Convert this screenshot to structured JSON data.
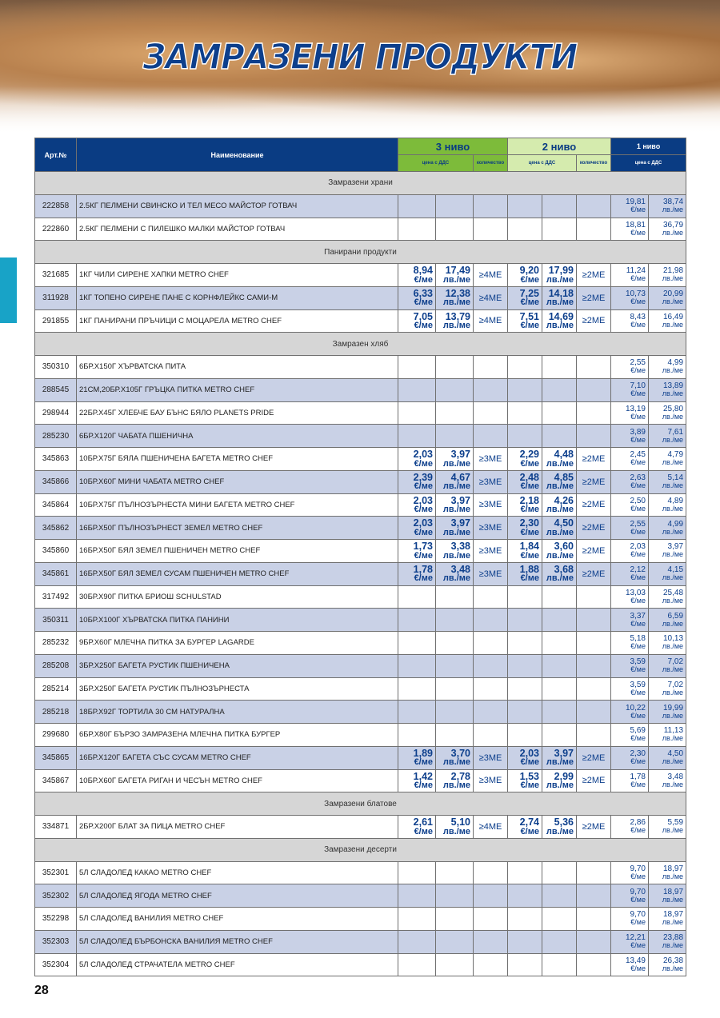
{
  "title": "ЗАМРАЗЕНИ ПРОДУКТИ",
  "page_number": "28",
  "colors": {
    "header_blue": "#0a3c83",
    "level3_green": "#7dbb3a",
    "level2_green": "#d5ebae",
    "row_shade": "#c9d1e6",
    "section_gray": "#d6d6d6",
    "side_tab": "#18a3c7"
  },
  "header": {
    "art": "Арт.№",
    "name": "Наименование",
    "level3": "3 ниво",
    "level2": "2 ниво",
    "level1": "1 ниво",
    "price_vat": "цена с ДДС",
    "quantity": "количество"
  },
  "units": {
    "eur": "€/ме",
    "bgn": "лв./ме"
  },
  "sections": [
    {
      "title": "Замразени храни",
      "items": [
        {
          "art": "222858",
          "name": "2.5КГ ПЕЛМЕНИ СВИНСКО И ТЕЛ МЕСО МАЙСТОР ГОТВАЧ",
          "l1": [
            "19,81",
            "38,74"
          ]
        },
        {
          "art": "222860",
          "name": "2.5КГ ПЕЛМЕНИ С ПИЛЕШКО МАЛКИ МАЙСТОР ГОТВАЧ",
          "l1": [
            "18,81",
            "36,79"
          ]
        }
      ]
    },
    {
      "title": "Панирани продукти",
      "items": [
        {
          "art": "321685",
          "name": "1КГ ЧИЛИ СИРЕНЕ ХАПКИ METRO CHEF",
          "l3": [
            "8,94",
            "17,49",
            "≥4МЕ"
          ],
          "l2": [
            "9,20",
            "17,99",
            "≥2МЕ"
          ],
          "l1": [
            "11,24",
            "21,98"
          ]
        },
        {
          "art": "311928",
          "name": "1КГ ТОПЕНО СИРЕНЕ ПАНЕ С КОРНФЛЕЙКС САМИ-М",
          "l3": [
            "6,33",
            "12,38",
            "≥4МЕ"
          ],
          "l2": [
            "7,25",
            "14,18",
            "≥2МЕ"
          ],
          "l1": [
            "10,73",
            "20,99"
          ]
        },
        {
          "art": "291855",
          "name": "1КГ ПАНИРАНИ ПРЪЧИЦИ С МОЦАРЕЛА METRO CHEF",
          "l3": [
            "7,05",
            "13,79",
            "≥4МЕ"
          ],
          "l2": [
            "7,51",
            "14,69",
            "≥2МЕ"
          ],
          "l1": [
            "8,43",
            "16,49"
          ]
        }
      ]
    },
    {
      "title": "Замразен хляб",
      "items": [
        {
          "art": "350310",
          "name": "6БР.Х150Г ХЪРВАТСКА ПИТА",
          "l1": [
            "2,55",
            "4,99"
          ]
        },
        {
          "art": "288545",
          "name": "21СМ,20БР.Х105Г ГРЪЦКА ПИТКА METRO CHEF",
          "l1": [
            "7,10",
            "13,89"
          ]
        },
        {
          "art": "298944",
          "name": "22БР.Х45Г ХЛЕБЧЕ БАУ БЪНС БЯЛО PLANETS PRIDE",
          "l1": [
            "13,19",
            "25,80"
          ]
        },
        {
          "art": "285230",
          "name": "6БР.Х120Г ЧАБАТА ПШЕНИЧНА",
          "l1": [
            "3,89",
            "7,61"
          ]
        },
        {
          "art": "345863",
          "name": "10БР.Х75Г БЯЛА ПШЕНИЧЕНА БАГЕТА METRO CHEF",
          "l3": [
            "2,03",
            "3,97",
            "≥3МЕ"
          ],
          "l2": [
            "2,29",
            "4,48",
            "≥2МЕ"
          ],
          "l1": [
            "2,45",
            "4,79"
          ]
        },
        {
          "art": "345866",
          "name": "10БР.Х60Г МИНИ ЧАБАТА METRO CHEF",
          "l3": [
            "2,39",
            "4,67",
            "≥3МЕ"
          ],
          "l2": [
            "2,48",
            "4,85",
            "≥2МЕ"
          ],
          "l1": [
            "2,63",
            "5,14"
          ]
        },
        {
          "art": "345864",
          "name": "10БР.Х75Г ПЪЛНОЗЪРНЕСТА МИНИ БАГЕТА METRO CHEF",
          "l3": [
            "2,03",
            "3,97",
            "≥3МЕ"
          ],
          "l2": [
            "2,18",
            "4,26",
            "≥2МЕ"
          ],
          "l1": [
            "2,50",
            "4,89"
          ]
        },
        {
          "art": "345862",
          "name": "16БР.Х50Г ПЪЛНОЗЪРНЕСТ ЗЕМЕЛ METRO CHEF",
          "l3": [
            "2,03",
            "3,97",
            "≥3МЕ"
          ],
          "l2": [
            "2,30",
            "4,50",
            "≥2МЕ"
          ],
          "l1": [
            "2,55",
            "4,99"
          ]
        },
        {
          "art": "345860",
          "name": "16БР.Х50Г БЯЛ ЗЕМЕЛ ПШЕНИЧЕН METRO CHEF",
          "l3": [
            "1,73",
            "3,38",
            "≥3МЕ"
          ],
          "l2": [
            "1,84",
            "3,60",
            "≥2МЕ"
          ],
          "l1": [
            "2,03",
            "3,97"
          ]
        },
        {
          "art": "345861",
          "name": "16БР.Х50Г БЯЛ ЗЕМЕЛ СУСАМ ПШЕНИЧЕН METRO CHEF",
          "l3": [
            "1,78",
            "3,48",
            "≥3МЕ"
          ],
          "l2": [
            "1,88",
            "3,68",
            "≥2МЕ"
          ],
          "l1": [
            "2,12",
            "4,15"
          ]
        },
        {
          "art": "317492",
          "name": "30БР.Х90Г ПИТКА БРИОШ SCHULSTAD",
          "l1": [
            "13,03",
            "25,48"
          ]
        },
        {
          "art": "350311",
          "name": "10БР.Х100Г ХЪРВАТСКА ПИТКА ПАНИНИ",
          "l1": [
            "3,37",
            "6,59"
          ]
        },
        {
          "art": "285232",
          "name": "9БР.Х60Г МЛЕЧНА ПИТКА ЗА БУРГЕР LAGARDE",
          "l1": [
            "5,18",
            "10,13"
          ]
        },
        {
          "art": "285208",
          "name": "3БР.Х250Г БАГЕТА РУСТИК ПШЕНИЧЕНА",
          "l1": [
            "3,59",
            "7,02"
          ]
        },
        {
          "art": "285214",
          "name": "3БР.Х250Г БАГЕТА РУСТИК ПЪЛНОЗЪРНЕСТА",
          "l1": [
            "3,59",
            "7,02"
          ]
        },
        {
          "art": "285218",
          "name": "18БР.Х92Г ТОРТИЛА 30 СМ НАТУРАЛНА",
          "l1": [
            "10,22",
            "19,99"
          ]
        },
        {
          "art": "299680",
          "name": "6БР.Х80Г БЪРЗО ЗАМРАЗЕНА МЛЕЧНА ПИТКА БУРГЕР",
          "l1": [
            "5,69",
            "11,13"
          ]
        },
        {
          "art": "345865",
          "name": "16БР.Х120Г БАГЕТА СЪС СУСАМ METRO CHEF",
          "l3": [
            "1,89",
            "3,70",
            "≥3МЕ"
          ],
          "l2": [
            "2,03",
            "3,97",
            "≥2МЕ"
          ],
          "l1": [
            "2,30",
            "4,50"
          ]
        },
        {
          "art": "345867",
          "name": "10БР.Х60Г БАГЕТА РИГАН И ЧЕСЪН METRO CHEF",
          "l3": [
            "1,42",
            "2,78",
            "≥3МЕ"
          ],
          "l2": [
            "1,53",
            "2,99",
            "≥2МЕ"
          ],
          "l1": [
            "1,78",
            "3,48"
          ]
        }
      ]
    },
    {
      "title": "Замразени блатове",
      "items": [
        {
          "art": "334871",
          "name": "2БР.Х200Г БЛАТ ЗА ПИЦА METRO CHEF",
          "l3": [
            "2,61",
            "5,10",
            "≥4МЕ"
          ],
          "l2": [
            "2,74",
            "5,36",
            "≥2МЕ"
          ],
          "l1": [
            "2,86",
            "5,59"
          ]
        }
      ]
    },
    {
      "title": "Замразени десерти",
      "items": [
        {
          "art": "352301",
          "name": "5Л СЛАДОЛЕД КАКАО METRO CHEF",
          "l1": [
            "9,70",
            "18,97"
          ]
        },
        {
          "art": "352302",
          "name": "5Л СЛАДОЛЕД ЯГОДА METRO CHEF",
          "l1": [
            "9,70",
            "18,97"
          ]
        },
        {
          "art": "352298",
          "name": "5Л СЛАДОЛЕД ВАНИЛИЯ METRO CHEF",
          "l1": [
            "9,70",
            "18,97"
          ]
        },
        {
          "art": "352303",
          "name": "5Л СЛАДОЛЕД БЪРБОНСКА ВАНИЛИЯ METRO CHEF",
          "l1": [
            "12,21",
            "23,88"
          ]
        },
        {
          "art": "352304",
          "name": "5Л СЛАДОЛЕД СТРАЧАТЕЛА METRO CHEF",
          "l1": [
            "13,49",
            "26,38"
          ]
        }
      ]
    }
  ]
}
